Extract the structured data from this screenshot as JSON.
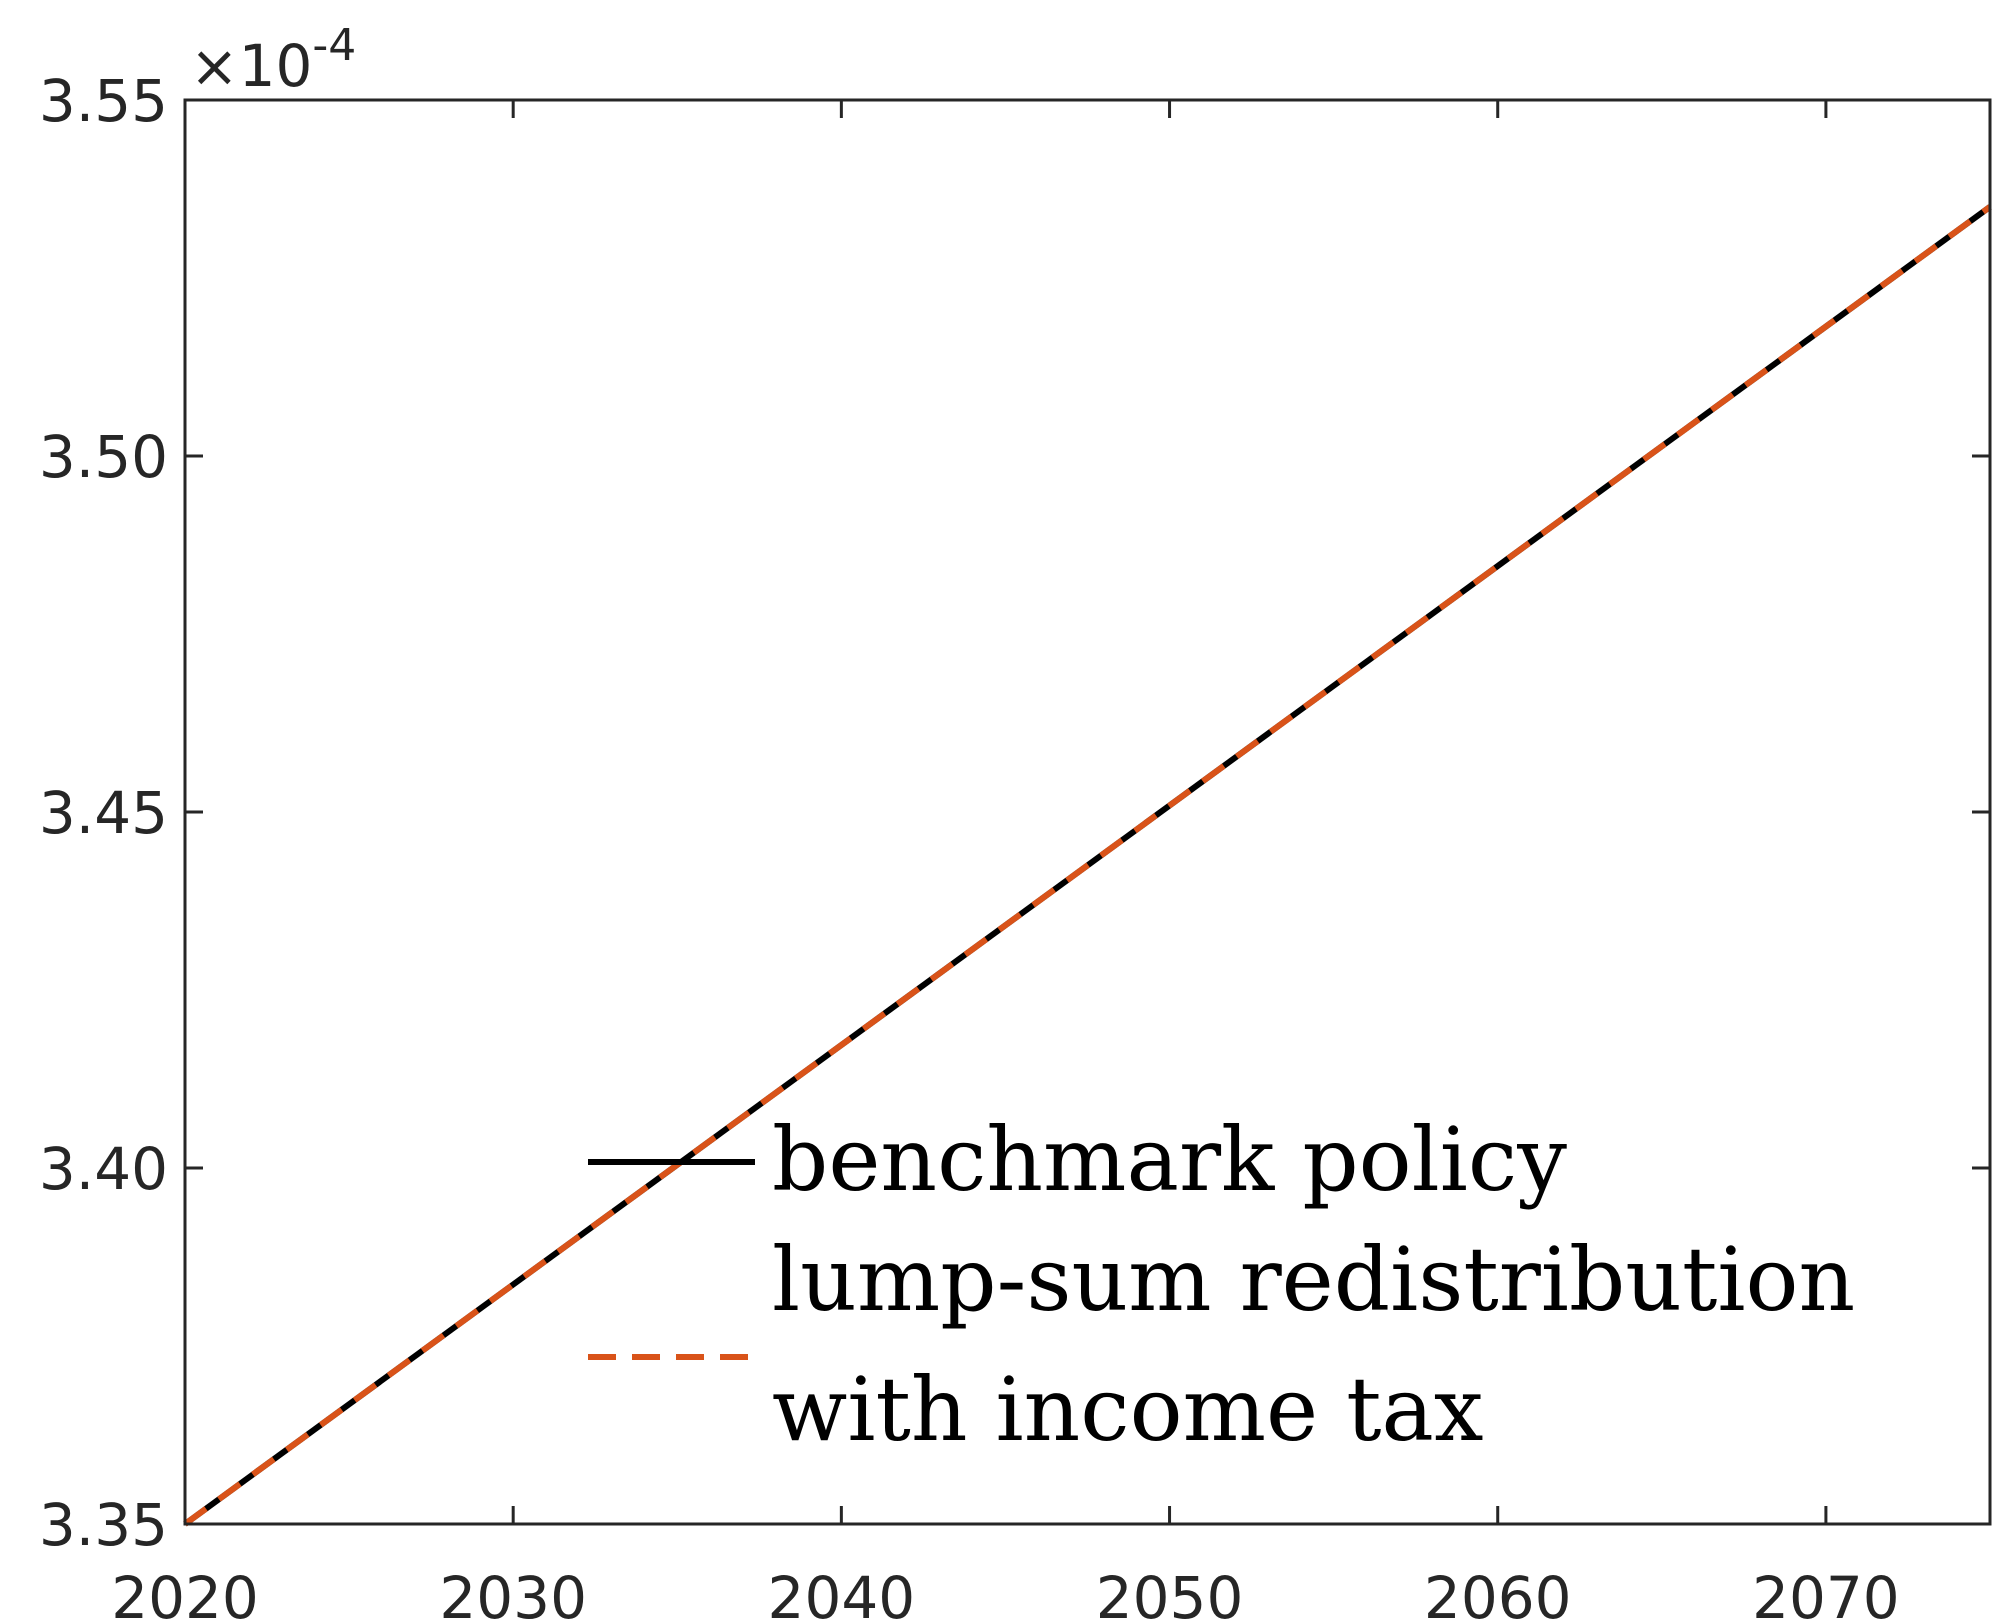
{
  "chart_data": {
    "type": "line",
    "title": "",
    "xlabel": "",
    "ylabel": "",
    "xlim": [
      2020,
      2075
    ],
    "ylim": [
      3.35,
      3.55
    ],
    "y_multiplier": "×10",
    "y_multiplier_exponent": "-4",
    "x_ticks": [
      2020,
      2030,
      2040,
      2050,
      2060,
      2070
    ],
    "x_tick_labels": [
      "2020",
      "2030",
      "2040",
      "2050",
      "2060",
      "2070"
    ],
    "y_ticks": [
      3.35,
      3.4,
      3.45,
      3.5,
      3.55
    ],
    "y_tick_labels": [
      "3.35",
      "3.40",
      "3.45",
      "3.50",
      "3.55"
    ],
    "grid": false,
    "legend_position": "bottom-center",
    "legend_labels": [
      "benchmark policy",
      "lump-sum redistribution",
      "with income tax"
    ],
    "series": [
      {
        "name": "benchmark policy",
        "color": "#000000",
        "style": "solid",
        "x": [
          2020,
          2075
        ],
        "y": [
          3.35,
          3.535
        ]
      },
      {
        "name": "lump-sum redistribution",
        "color": "#000000",
        "style": "none",
        "x": [
          2020,
          2075
        ],
        "y": [
          3.35,
          3.535
        ]
      },
      {
        "name": "with income tax",
        "color": "#D95319",
        "style": "dashed",
        "x": [
          2020,
          2075
        ],
        "y": [
          3.35,
          3.535
        ]
      }
    ]
  }
}
